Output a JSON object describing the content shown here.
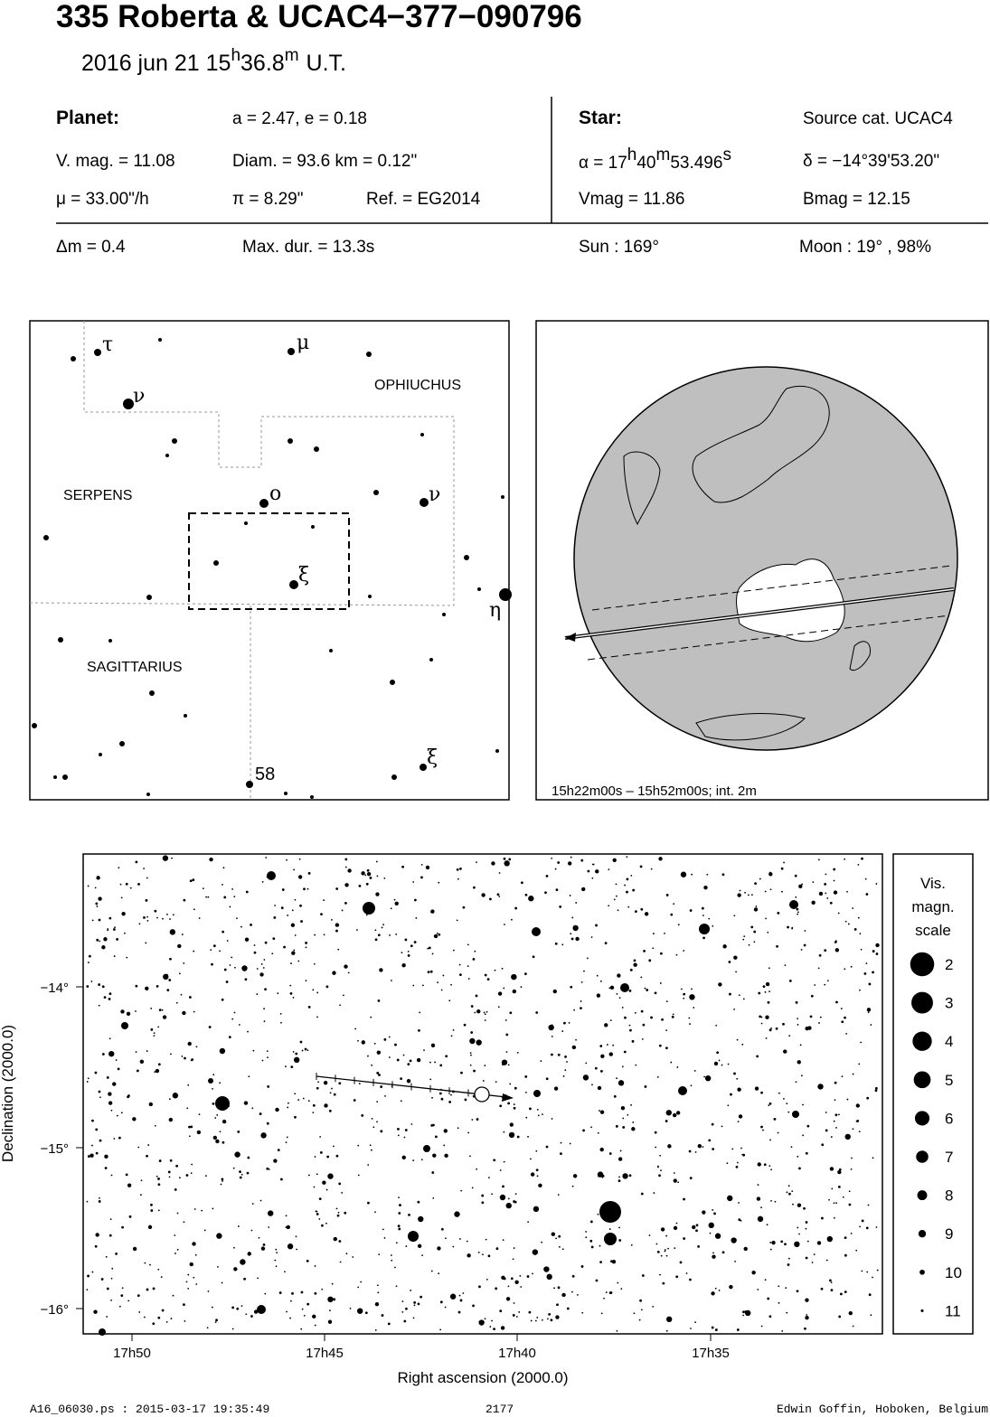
{
  "header": {
    "title": "335 Roberta  &  UCAC4−377−090796",
    "date": "2016 jun 21  15",
    "hour_unit": "h",
    "minutes": "36.8",
    "minute_unit": "m",
    "time_system": "U.T."
  },
  "planet": {
    "label": "Planet:",
    "orbit": "a = 2.47, e = 0.18",
    "vmag": "V. mag. = 11.08",
    "diameter": "Diam. = 93.6 km = 0.12\"",
    "motion": "μ =  33.00\"/h",
    "parallax": "π =  8.29\"",
    "reference": "Ref. = EG2014"
  },
  "star": {
    "label": "Star:",
    "source": "Source cat.  UCAC4",
    "ra_prefix": "α = 17",
    "ra_h": "h",
    "ra_min": "40",
    "ra_m": "m",
    "ra_sec": "53.496",
    "ra_s": "s",
    "dec": "δ = −14°39'53.20\"",
    "vmag": "Vmag = 11.86",
    "bmag": "Bmag = 12.15"
  },
  "event": {
    "delta_mag": "Δm = 0.4",
    "max_duration": "Max. dur. = 13.3s",
    "sun": "Sun : 169°",
    "moon": "Moon :  19° , 98%"
  },
  "finder": {
    "constellations": [
      "OPHIUCHUS",
      "SERPENS",
      "SAGITTARIUS"
    ],
    "star_labels": [
      "τ",
      "ν",
      "μ",
      "ο",
      "ν",
      "ξ",
      "η",
      "ξ",
      "58"
    ]
  },
  "globe": {
    "caption": "15h22m00s – 15h52m00s; int.  2m"
  },
  "star_chart": {
    "y_label": "Declination (2000.0)",
    "x_label": "Right ascension (2000.0)",
    "yticks": [
      "−14°",
      "−15°",
      "−16°"
    ],
    "xticks": [
      "17h50",
      "17h45",
      "17h40",
      "17h35"
    ],
    "legend_title": [
      "Vis.",
      "magn.",
      "scale"
    ],
    "magnitudes": [
      2,
      3,
      4,
      5,
      6,
      7,
      8,
      9,
      10,
      11
    ]
  },
  "footer": {
    "file": "A16_06030.ps : 2015-03-17 19:35:49",
    "number": "2177",
    "author": "Edwin Goffin, Hoboken, Belgium"
  }
}
